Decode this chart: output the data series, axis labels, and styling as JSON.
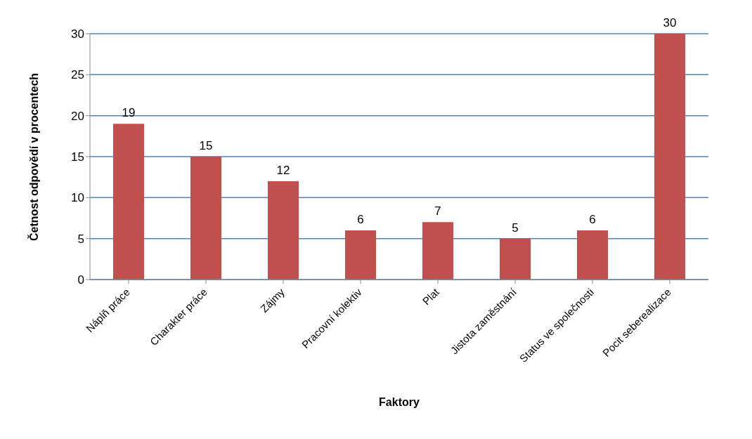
{
  "chart_data": {
    "type": "bar",
    "xlabel": "Faktory",
    "ylabel": "Četnost odpovědí v procentech",
    "categories": [
      "Náplň práce",
      "Charakter práce",
      "Zájmy",
      "Pracovní kolektiv",
      "Plat",
      "Jistota zaměstnání",
      "Status ve společnosti",
      "Pocit seberealizace"
    ],
    "values": [
      19,
      15,
      12,
      6,
      7,
      5,
      6,
      30
    ],
    "color": "#c0504d",
    "ylim": [
      0,
      30
    ],
    "yticks": [
      0,
      5,
      10,
      15,
      20,
      25,
      30
    ],
    "grid": "y",
    "data_labels": true
  }
}
